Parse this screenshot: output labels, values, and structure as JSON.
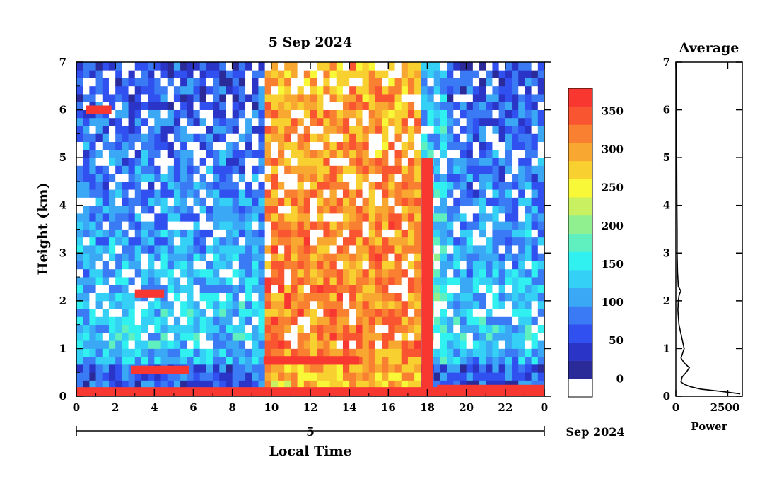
{
  "chart_data": [
    {
      "type": "heatmap",
      "title": "5 Sep 2024",
      "xlabel": "Local Time",
      "ylabel": "Height (km)",
      "x_ticks": [
        "0",
        "2",
        "4",
        "6",
        "8",
        "10",
        "12",
        "14",
        "16",
        "18",
        "20",
        "22",
        "0"
      ],
      "y_ticks": [
        "0",
        "1",
        "2",
        "3",
        "4",
        "5",
        "6",
        "7"
      ],
      "xlim": [
        0,
        24
      ],
      "ylim": [
        0,
        7
      ],
      "date_axis": {
        "day": "5",
        "month_year": "Sep 2024"
      },
      "colorbar": {
        "ticks": [
          "0",
          "50",
          "100",
          "150",
          "200",
          "250",
          "300",
          "350"
        ],
        "range": [
          0,
          380
        ],
        "colors": [
          "#ffffff",
          "#2a2a99",
          "#2a35c8",
          "#3050f0",
          "#3a7af5",
          "#3aa8f5",
          "#35d0f5",
          "#30f0f0",
          "#60f0c0",
          "#90f090",
          "#c8f060",
          "#f8f838",
          "#f8d030",
          "#f8a830",
          "#f88030",
          "#f85530",
          "#f83830"
        ]
      },
      "features": [
        {
          "name": "surface layer",
          "t_start": 0,
          "t_end": 24,
          "height_km": 0.1,
          "value": 360
        },
        {
          "name": "layer 0.5 km",
          "t_start": 2.8,
          "t_end": 5.8,
          "height_km": 0.55,
          "value": 380
        },
        {
          "name": "cloud 2.2 km",
          "t_start": 3.0,
          "t_end": 4.5,
          "height_km": 2.15,
          "value": 380
        },
        {
          "name": "layer 0.7 km",
          "t_start": 9.6,
          "t_end": 14.5,
          "height_km": 0.75,
          "value": 380
        },
        {
          "name": "cloud 6 km",
          "t_start": 0.5,
          "t_end": 1.8,
          "height_km": 6.0,
          "value": 380
        },
        {
          "name": "precip column",
          "t_start": 17.7,
          "t_end": 18.3,
          "height_km": 2.5,
          "value": 380
        },
        {
          "name": "nocturnal layer",
          "t_start": 18.5,
          "t_end": 24,
          "height_km": 0.15,
          "value": 380
        }
      ]
    },
    {
      "type": "line",
      "title": "Average",
      "xlabel": "Power",
      "x_ticks": [
        "0",
        "2500"
      ],
      "y_ticks": [
        "0",
        "1",
        "2",
        "3",
        "4",
        "5",
        "6",
        "7"
      ],
      "xlim": [
        0,
        3200
      ],
      "ylim": [
        0,
        7
      ],
      "x": [
        3100,
        2200,
        1200,
        700,
        400,
        250,
        300,
        500,
        650,
        400,
        250,
        400,
        300,
        150,
        100,
        120,
        150,
        180,
        250,
        120,
        80,
        60,
        60,
        50,
        40,
        40,
        30,
        30
      ],
      "y": [
        0.05,
        0.1,
        0.15,
        0.2,
        0.25,
        0.3,
        0.4,
        0.5,
        0.6,
        0.7,
        0.8,
        1.0,
        1.2,
        1.5,
        1.8,
        2.0,
        2.1,
        2.15,
        2.2,
        2.3,
        2.6,
        3.0,
        3.5,
        4.0,
        5.0,
        6.0,
        6.5,
        7.0
      ]
    }
  ]
}
